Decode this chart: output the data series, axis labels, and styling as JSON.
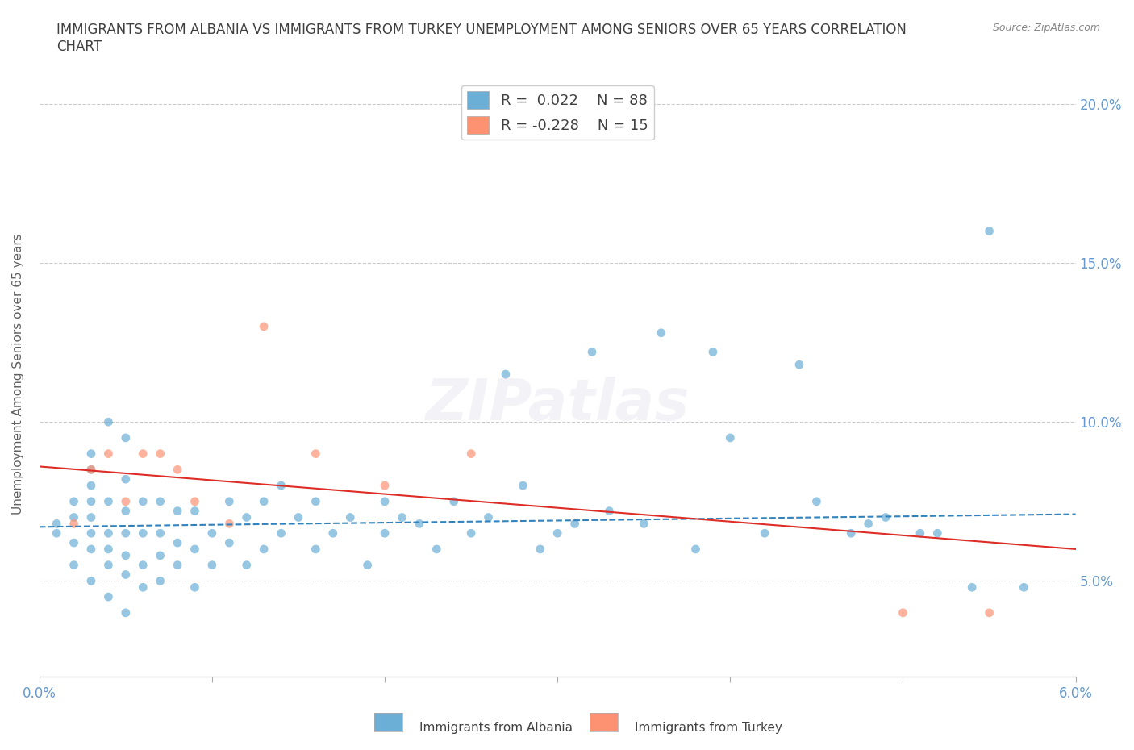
{
  "title": "IMMIGRANTS FROM ALBANIA VS IMMIGRANTS FROM TURKEY UNEMPLOYMENT AMONG SENIORS OVER 65 YEARS CORRELATION\nCHART",
  "source": "Source: ZipAtlas.com",
  "xlabel": "",
  "ylabel": "Unemployment Among Seniors over 65 years",
  "xlim": [
    0.0,
    0.06
  ],
  "ylim": [
    0.02,
    0.21
  ],
  "yticks": [
    0.05,
    0.1,
    0.15,
    0.2
  ],
  "ytick_labels": [
    "5.0%",
    "10.0%",
    "15.0%",
    "20.0%"
  ],
  "xticks": [
    0.0,
    0.01,
    0.02,
    0.03,
    0.04,
    0.05,
    0.06
  ],
  "xtick_labels": [
    "0.0%",
    "",
    "",
    "",
    "",
    "",
    "6.0%"
  ],
  "legend_R_albania": "R =  0.022",
  "legend_N_albania": "N = 88",
  "legend_R_turkey": "R = -0.228",
  "legend_N_turkey": "N = 15",
  "albania_color": "#6baed6",
  "turkey_color": "#fc9272",
  "albania_line_color": "#3182bd",
  "turkey_line_color": "#de2d26",
  "watermark": "ZIPatlas",
  "albania_scatter_x": [
    0.001,
    0.001,
    0.002,
    0.002,
    0.002,
    0.002,
    0.003,
    0.003,
    0.003,
    0.003,
    0.003,
    0.003,
    0.003,
    0.003,
    0.004,
    0.004,
    0.004,
    0.004,
    0.004,
    0.004,
    0.005,
    0.005,
    0.005,
    0.005,
    0.005,
    0.005,
    0.005,
    0.006,
    0.006,
    0.006,
    0.006,
    0.007,
    0.007,
    0.007,
    0.007,
    0.008,
    0.008,
    0.008,
    0.009,
    0.009,
    0.009,
    0.01,
    0.01,
    0.011,
    0.011,
    0.012,
    0.012,
    0.013,
    0.013,
    0.014,
    0.014,
    0.015,
    0.016,
    0.016,
    0.017,
    0.018,
    0.019,
    0.02,
    0.02,
    0.022,
    0.023,
    0.024,
    0.025,
    0.026,
    0.028,
    0.029,
    0.03,
    0.031,
    0.033,
    0.035,
    0.038,
    0.04,
    0.042,
    0.045,
    0.047,
    0.049,
    0.052,
    0.055,
    0.021,
    0.027,
    0.032,
    0.036,
    0.039,
    0.044,
    0.048,
    0.051,
    0.054,
    0.057
  ],
  "albania_scatter_y": [
    0.065,
    0.068,
    0.055,
    0.062,
    0.07,
    0.075,
    0.05,
    0.06,
    0.065,
    0.07,
    0.075,
    0.08,
    0.085,
    0.09,
    0.045,
    0.055,
    0.06,
    0.065,
    0.075,
    0.1,
    0.04,
    0.052,
    0.058,
    0.065,
    0.072,
    0.082,
    0.095,
    0.048,
    0.055,
    0.065,
    0.075,
    0.05,
    0.058,
    0.065,
    0.075,
    0.055,
    0.062,
    0.072,
    0.048,
    0.06,
    0.072,
    0.055,
    0.065,
    0.062,
    0.075,
    0.055,
    0.07,
    0.06,
    0.075,
    0.065,
    0.08,
    0.07,
    0.06,
    0.075,
    0.065,
    0.07,
    0.055,
    0.065,
    0.075,
    0.068,
    0.06,
    0.075,
    0.065,
    0.07,
    0.08,
    0.06,
    0.065,
    0.068,
    0.072,
    0.068,
    0.06,
    0.095,
    0.065,
    0.075,
    0.065,
    0.07,
    0.065,
    0.16,
    0.07,
    0.115,
    0.122,
    0.128,
    0.122,
    0.118,
    0.068,
    0.065,
    0.048,
    0.048
  ],
  "turkey_scatter_x": [
    0.002,
    0.003,
    0.004,
    0.005,
    0.006,
    0.007,
    0.008,
    0.009,
    0.011,
    0.013,
    0.016,
    0.02,
    0.025,
    0.05,
    0.055
  ],
  "turkey_scatter_y": [
    0.068,
    0.085,
    0.09,
    0.075,
    0.09,
    0.09,
    0.085,
    0.075,
    0.068,
    0.13,
    0.09,
    0.08,
    0.09,
    0.04,
    0.04
  ],
  "albania_trend_x": [
    0.0,
    0.06
  ],
  "albania_trend_y": [
    0.067,
    0.071
  ],
  "turkey_trend_x": [
    0.0,
    0.06
  ],
  "turkey_trend_y": [
    0.086,
    0.06
  ],
  "background_color": "#ffffff",
  "grid_color": "#cccccc",
  "title_color": "#404040",
  "axis_color": "#606060",
  "tick_color": "#6699cc"
}
